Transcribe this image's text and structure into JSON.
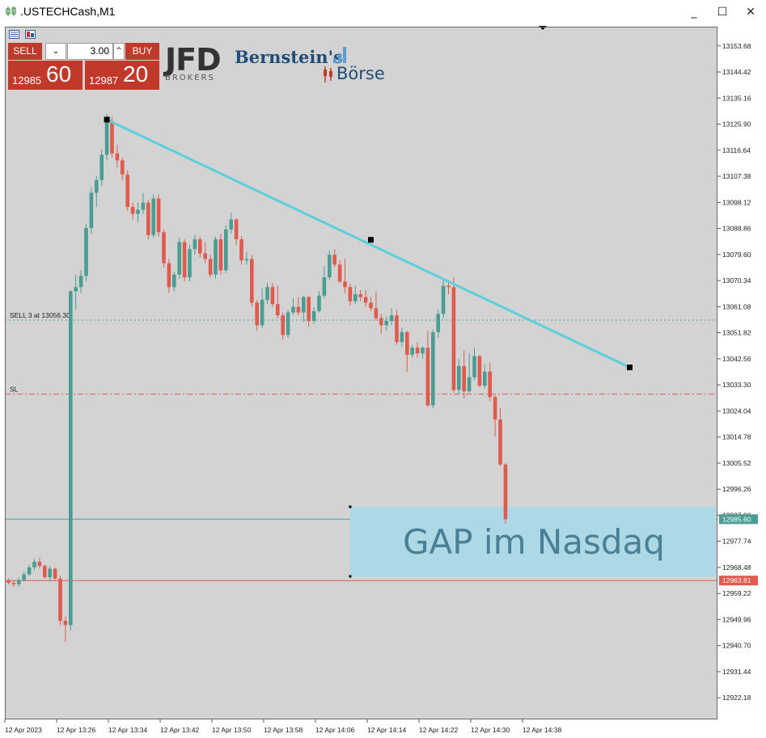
{
  "window": {
    "title": ".USTECHCash,M1",
    "minimize": "_",
    "maximize": "☐",
    "close": "✕"
  },
  "trade_panel": {
    "sell_label": "SELL",
    "buy_label": "BUY",
    "lot": "3.00",
    "sell_price_small": "12985",
    "sell_price_big": "60",
    "buy_price_small": "12987",
    "buy_price_big": "20"
  },
  "logos": {
    "jfd": "JFD",
    "jfd_sub": "BROKERS",
    "bernstein_1": "Bernstein's",
    "bernstein_2": "Börse"
  },
  "colors": {
    "bull": "#4a9d93",
    "bear": "#e05a4e",
    "trendline": "#5bd0da",
    "gap_box": "#add8e6",
    "sl_line": "#e05a4e",
    "background": "#d3d3d3"
  },
  "chart_data": {
    "type": "candlestick",
    "symbol": ".USTECHCash",
    "timeframe": "M1",
    "ylim": [
      12914.5,
      13160.5
    ],
    "y_ticks": [
      "13153.68",
      "13144.42",
      "13135.16",
      "13125.90",
      "13116.64",
      "13107.38",
      "13098.12",
      "13088.86",
      "13079.60",
      "13070.34",
      "13061.08",
      "13051.82",
      "13042.56",
      "13033.30",
      "13024.04",
      "13014.78",
      "13005.52",
      "12996.26",
      "12987.00",
      "12977.74",
      "12968.48",
      "12959.22",
      "12949.96",
      "12940.70",
      "12931.44",
      "12922.18"
    ],
    "x_ticks": [
      "12 Apr 2023",
      "12 Apr 13:26",
      "12 Apr 13:34",
      "12 Apr 13:42",
      "12 Apr 13:50",
      "12 Apr 13:58",
      "12 Apr 14:06",
      "12 Apr 14:14",
      "12 Apr 14:22",
      "12 Apr 14:30",
      "12 Apr 14:38"
    ],
    "candles": [
      [
        12963.9,
        12963.0,
        12964.5,
        12962.5
      ],
      [
        12963.0,
        12962.5,
        12963.8,
        12961.5
      ],
      [
        12962.5,
        12964.0,
        12965.0,
        12961.5
      ],
      [
        12964.0,
        12966.0,
        12967.0,
        12963.5
      ],
      [
        12966.0,
        12968.5,
        12969.5,
        12965.5
      ],
      [
        12968.5,
        12970.5,
        12971.5,
        12967.5
      ],
      [
        12970.5,
        12969.0,
        12972.0,
        12968.0
      ],
      [
        12969.0,
        12965.0,
        12969.5,
        12964.5
      ],
      [
        12965.0,
        12968.0,
        12969.0,
        12963.5
      ],
      [
        12968.0,
        12964.5,
        12968.5,
        12964.0
      ],
      [
        12964.5,
        12949.5,
        12965.5,
        12948.0
      ],
      [
        12949.5,
        12948.0,
        12951.0,
        12942.0
      ],
      [
        12948.0,
        13066.5,
        13067.0,
        12946.0
      ],
      [
        13066.5,
        13068.0,
        13072.5,
        13060.0
      ],
      [
        13068.0,
        13072.0,
        13074.0,
        13066.0
      ],
      [
        13072.0,
        13089.0,
        13090.5,
        13070.0
      ],
      [
        13089.0,
        13101.5,
        13103.5,
        13087.0
      ],
      [
        13101.5,
        13106.0,
        13107.5,
        13096.5
      ],
      [
        13106.0,
        13115.0,
        13117.0,
        13104.0
      ],
      [
        13115.0,
        13127.0,
        13129.5,
        13113.0
      ],
      [
        13127.0,
        13115.5,
        13128.5,
        13114.0
      ],
      [
        13115.5,
        13113.0,
        13118.5,
        13110.5
      ],
      [
        13113.0,
        13108.0,
        13114.0,
        13106.0
      ],
      [
        13108.0,
        13096.5,
        13109.5,
        13095.0
      ],
      [
        13096.5,
        13094.0,
        13098.0,
        13092.0
      ],
      [
        13094.0,
        13095.5,
        13098.0,
        13091.0
      ],
      [
        13095.5,
        13098.0,
        13101.5,
        13094.0
      ],
      [
        13098.0,
        13086.5,
        13099.0,
        13085.0
      ],
      [
        13086.5,
        13099.5,
        13101.0,
        13085.5
      ],
      [
        13099.5,
        13087.5,
        13101.0,
        13086.0
      ],
      [
        13087.5,
        13076.5,
        13088.5,
        13075.0
      ],
      [
        13076.5,
        13068.0,
        13078.0,
        13066.0
      ],
      [
        13068.0,
        13072.5,
        13073.5,
        13066.5
      ],
      [
        13072.5,
        13084.0,
        13085.5,
        13071.0
      ],
      [
        13084.0,
        13071.5,
        13085.0,
        13070.0
      ],
      [
        13071.5,
        13081.5,
        13083.0,
        13070.0
      ],
      [
        13081.5,
        13085.0,
        13086.5,
        13079.5
      ],
      [
        13085.0,
        13080.0,
        13086.0,
        13078.5
      ],
      [
        13080.0,
        13078.0,
        13084.0,
        13076.5
      ],
      [
        13078.0,
        13072.5,
        13079.5,
        13071.5
      ],
      [
        13072.5,
        13085.0,
        13086.0,
        13071.0
      ],
      [
        13085.0,
        13074.0,
        13087.0,
        13072.5
      ],
      [
        13074.0,
        13088.5,
        13090.0,
        13073.0
      ],
      [
        13088.5,
        13092.0,
        13094.5,
        13087.0
      ],
      [
        13092.0,
        13085.0,
        13092.5,
        13083.0
      ],
      [
        13085.0,
        13077.5,
        13086.0,
        13076.0
      ],
      [
        13077.5,
        13078.0,
        13080.5,
        13076.0
      ],
      [
        13078.0,
        13062.5,
        13079.5,
        13061.0
      ],
      [
        13062.5,
        13054.5,
        13063.5,
        13052.5
      ],
      [
        13054.5,
        13063.5,
        13067.5,
        13053.5
      ],
      [
        13063.5,
        13068.0,
        13069.5,
        13062.0
      ],
      [
        13068.0,
        13062.0,
        13069.5,
        13061.0
      ],
      [
        13062.0,
        13058.0,
        13068.5,
        13057.0
      ],
      [
        13058.0,
        13051.0,
        13059.0,
        13049.5
      ],
      [
        13051.0,
        13059.0,
        13060.0,
        13050.0
      ],
      [
        13059.0,
        13061.0,
        13064.0,
        13058.0
      ],
      [
        13061.0,
        13059.0,
        13064.5,
        13058.0
      ],
      [
        13059.0,
        13064.5,
        13065.0,
        13055.5
      ],
      [
        13064.5,
        13056.0,
        13065.0,
        13054.0
      ],
      [
        13056.0,
        13059.5,
        13061.0,
        13055.0
      ],
      [
        13059.5,
        13065.0,
        13066.5,
        13059.0
      ],
      [
        13065.0,
        13071.5,
        13075.5,
        13064.0
      ],
      [
        13071.5,
        13079.5,
        13081.0,
        13070.5
      ],
      [
        13079.5,
        13076.0,
        13081.5,
        13075.0
      ],
      [
        13076.0,
        13070.0,
        13077.5,
        13069.5
      ],
      [
        13070.0,
        13068.0,
        13078.0,
        13066.0
      ],
      [
        13068.0,
        13063.0,
        13069.0,
        13061.5
      ],
      [
        13063.0,
        13065.5,
        13068.5,
        13062.0
      ],
      [
        13065.5,
        13064.5,
        13067.0,
        13063.0
      ],
      [
        13064.5,
        13062.5,
        13067.0,
        13061.0
      ],
      [
        13062.5,
        13060.5,
        13064.5,
        13059.5
      ],
      [
        13060.5,
        13057.0,
        13066.5,
        13056.0
      ],
      [
        13057.0,
        13054.5,
        13058.5,
        13051.5
      ],
      [
        13054.5,
        13056.0,
        13057.5,
        13052.5
      ],
      [
        13056.0,
        13058.0,
        13060.5,
        13054.5
      ],
      [
        13058.0,
        13048.5,
        13060.0,
        13047.5
      ],
      [
        13048.5,
        13052.0,
        13053.5,
        13047.0
      ],
      [
        13052.0,
        13044.0,
        13052.5,
        13038.0
      ],
      [
        13044.0,
        13046.5,
        13047.5,
        13043.0
      ],
      [
        13046.5,
        13044.5,
        13048.5,
        13043.0
      ],
      [
        13044.5,
        13046.5,
        13047.0,
        13042.5
      ],
      [
        13046.5,
        13026.0,
        13052.5,
        13025.5
      ],
      [
        13026.0,
        13052.0,
        13053.0,
        13025.0
      ],
      [
        13052.0,
        13058.5,
        13060.0,
        13050.0
      ],
      [
        13058.5,
        13068.5,
        13070.5,
        13057.0
      ],
      [
        13068.5,
        13068.0,
        13070.5,
        13065.5
      ],
      [
        13068.0,
        13031.5,
        13071.5,
        13030.5
      ],
      [
        13031.5,
        13040.0,
        13042.5,
        13030.0
      ],
      [
        13040.0,
        13031.0,
        13045.5,
        13028.5
      ],
      [
        13031.0,
        13036.0,
        13044.5,
        13030.5
      ],
      [
        13036.0,
        13043.5,
        13046.5,
        13035.0
      ],
      [
        13043.5,
        13033.0,
        13044.0,
        13032.5
      ],
      [
        13033.0,
        13038.0,
        13040.5,
        13032.0
      ],
      [
        13038.0,
        13029.0,
        13041.0,
        13027.5
      ],
      [
        13029.0,
        13021.0,
        13029.5,
        13015.0
      ],
      [
        13021.0,
        13005.0,
        13025.0,
        13004.5
      ],
      [
        13005.0,
        12985.6,
        13005.5,
        12984.0
      ]
    ],
    "levels": [
      {
        "label": "SELL 3 at 13056.30",
        "price": 13056.3,
        "color": "#4a9d93",
        "style": "dotted"
      },
      {
        "label": "SL",
        "price": 13030.0,
        "color": "#e05a4e",
        "style": "dash-dot"
      },
      {
        "label": "",
        "price": 12985.6,
        "color": "#4a9d93",
        "style": "solid",
        "tag": "12985.60"
      },
      {
        "label": "",
        "price": 12963.81,
        "color": "#e05a4e",
        "style": "solid",
        "tag": "12963.81"
      }
    ],
    "trendline": {
      "points": [
        [
          19,
          13127.5
        ],
        [
          70,
          13084.8
        ],
        [
          120,
          13039.5
        ]
      ]
    },
    "gap_box": {
      "label": "GAP im Nasdaq",
      "price_top": 12990.0,
      "price_bottom": 12965.3,
      "start_index": 66
    }
  }
}
